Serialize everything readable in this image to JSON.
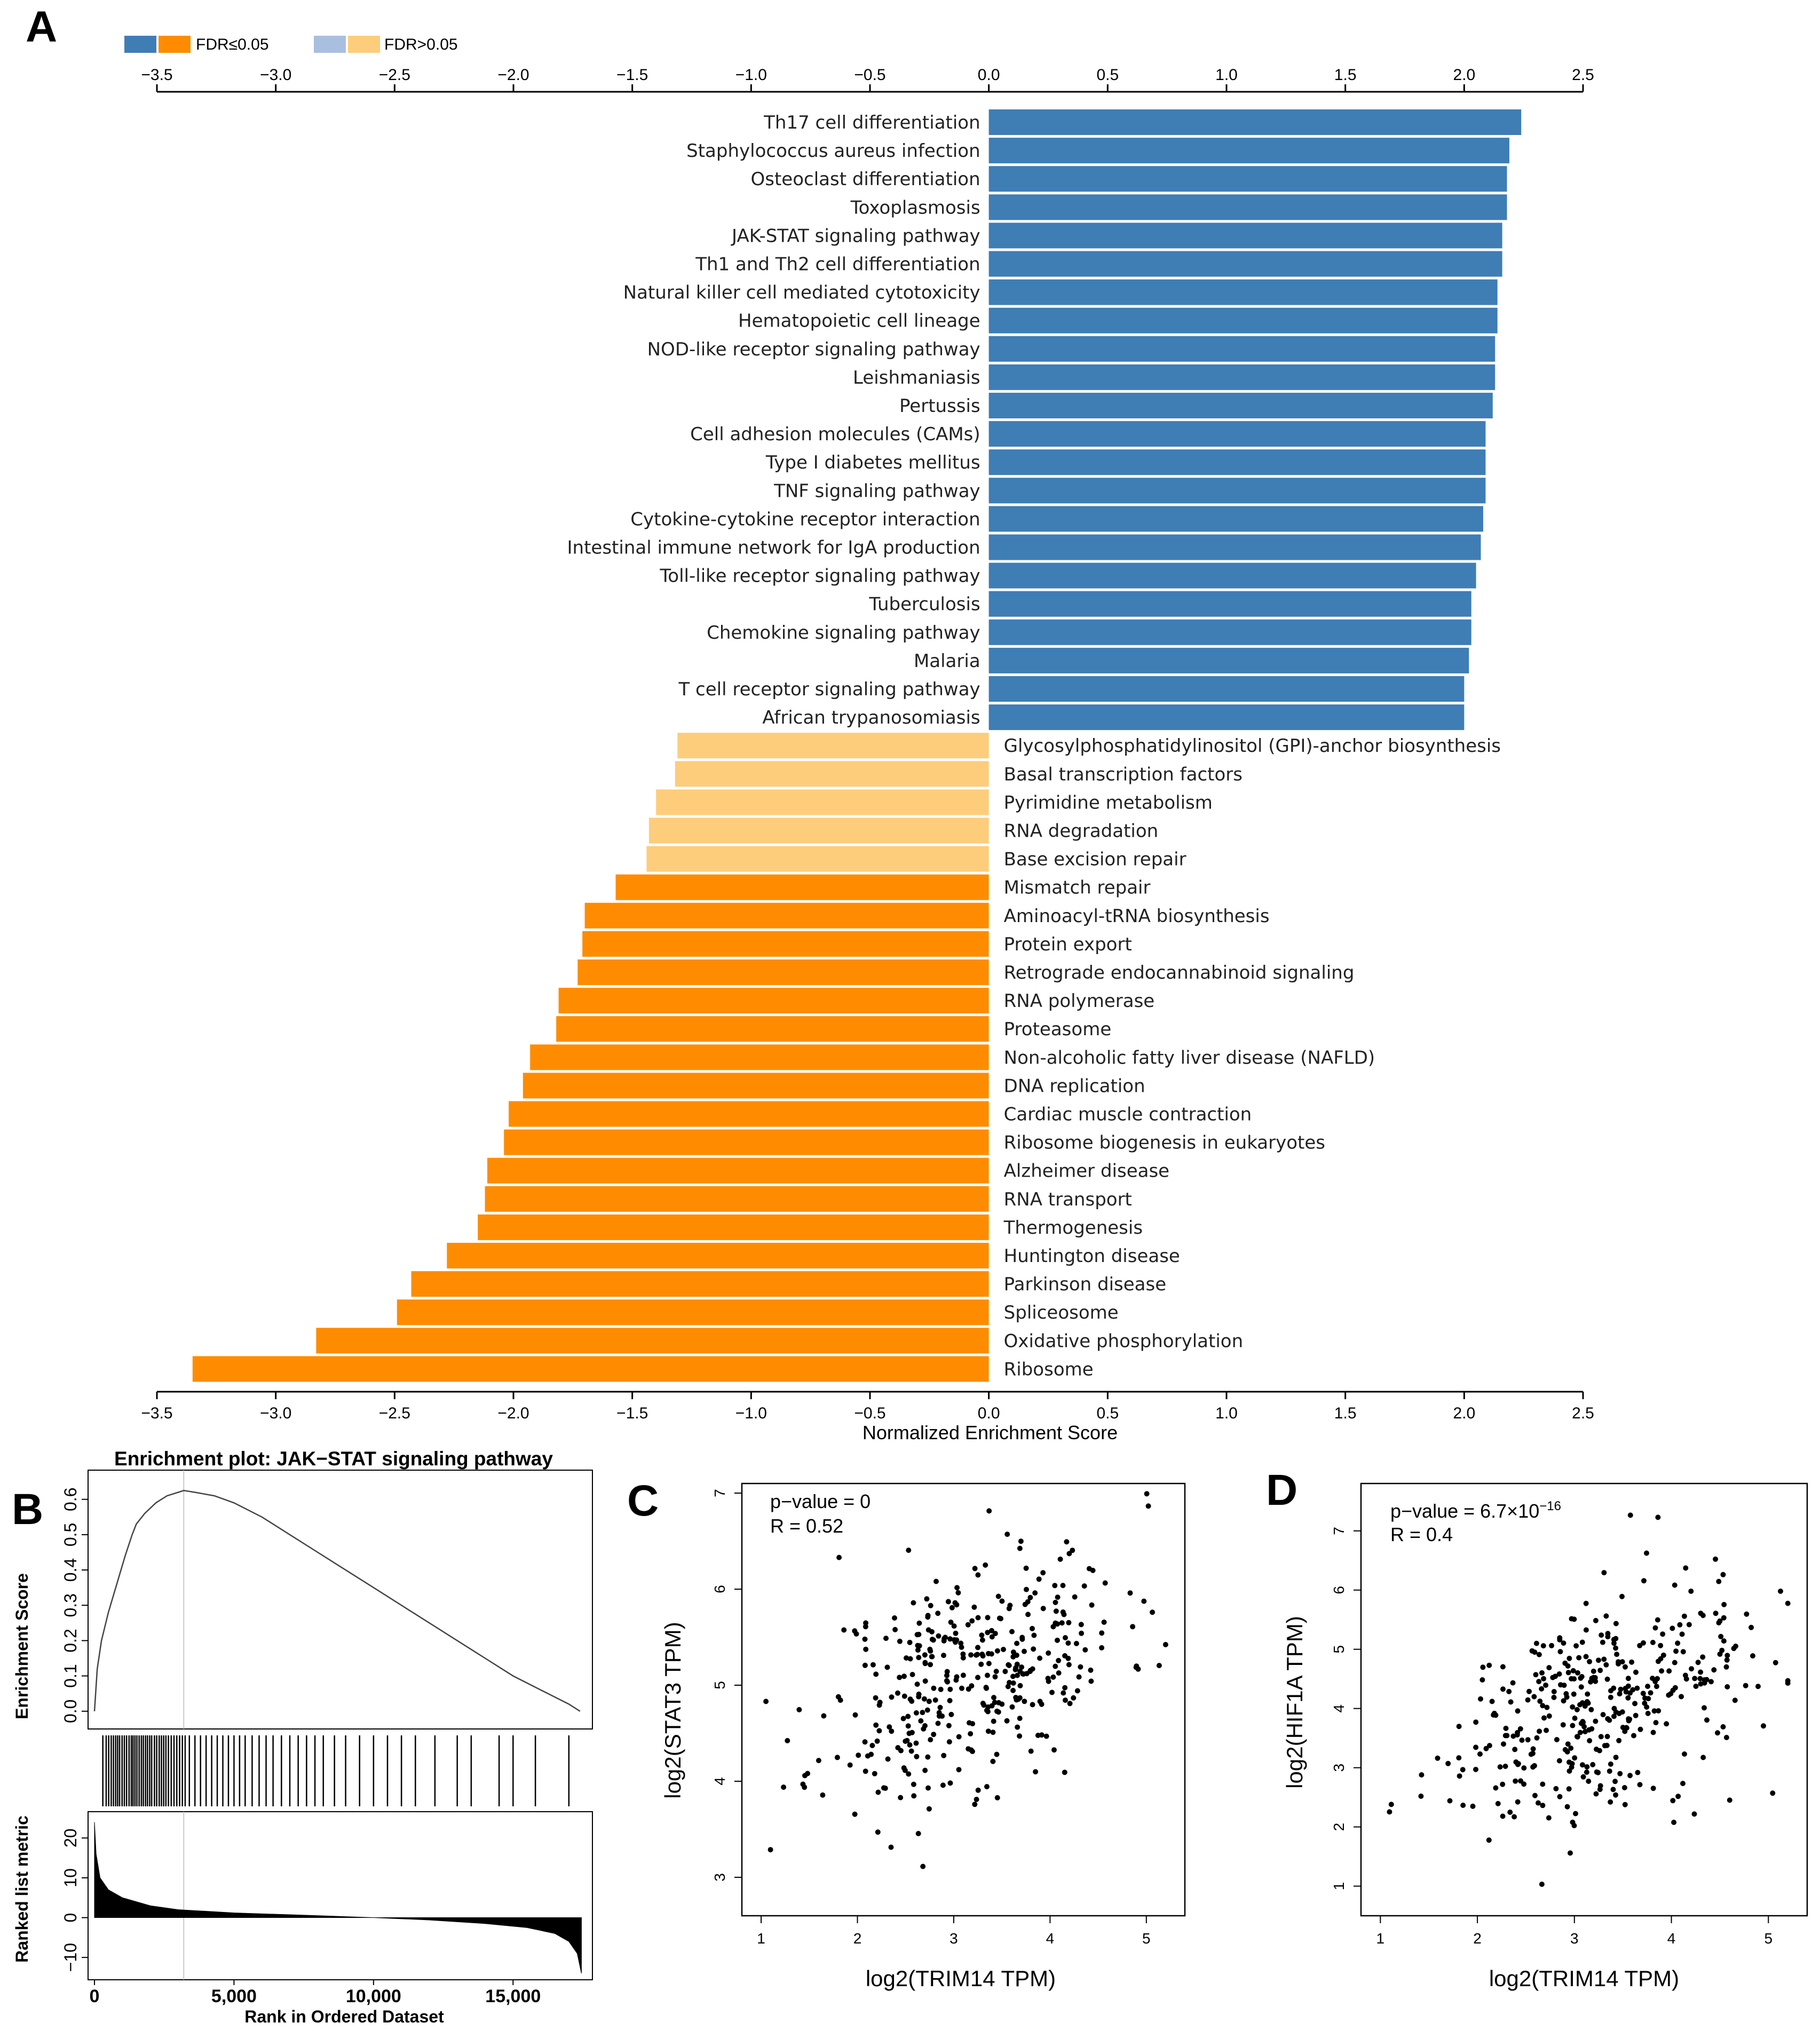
{
  "panel_labels": {
    "a": "A",
    "b": "B",
    "c": "C",
    "d": "D"
  },
  "chart_data": [
    {
      "type": "bar",
      "orientation": "horizontal",
      "panel": "A",
      "xlabel": "Normalized Enrichment Score",
      "xlim": [
        -3.5,
        2.5
      ],
      "x_ticks": [
        "-3.5",
        "-3.0",
        "-2.5",
        "-2.0",
        "-1.5",
        "-1.0",
        "-0.5",
        "0.0",
        "0.5",
        "1.0",
        "1.5",
        "2.0",
        "2.5"
      ],
      "legend": [
        {
          "label": "FDR≤0.05",
          "colors": [
            "#3f7db5",
            "#ff8c00"
          ]
        },
        {
          "label": "FDR>0.05",
          "colors": [
            "#a9bfe0",
            "#fdcd7b"
          ]
        }
      ],
      "colors": {
        "pos_sig": "#3f7db5",
        "pos_ns": "#a9bfe0",
        "neg_sig": "#ff8c00",
        "neg_ns": "#fdcd7b"
      },
      "bars": [
        {
          "label": "Th17 cell differentiation",
          "value": 2.24,
          "sig": true
        },
        {
          "label": "Staphylococcus aureus infection",
          "value": 2.19,
          "sig": true
        },
        {
          "label": "Osteoclast differentiation",
          "value": 2.18,
          "sig": true
        },
        {
          "label": "Toxoplasmosis",
          "value": 2.18,
          "sig": true
        },
        {
          "label": "JAK-STAT signaling pathway",
          "value": 2.16,
          "sig": true
        },
        {
          "label": "Th1 and Th2 cell differentiation",
          "value": 2.16,
          "sig": true
        },
        {
          "label": "Natural killer cell mediated cytotoxicity",
          "value": 2.14,
          "sig": true
        },
        {
          "label": "Hematopoietic cell lineage",
          "value": 2.14,
          "sig": true
        },
        {
          "label": "NOD-like receptor signaling pathway",
          "value": 2.13,
          "sig": true
        },
        {
          "label": "Leishmaniasis",
          "value": 2.13,
          "sig": true
        },
        {
          "label": "Pertussis",
          "value": 2.12,
          "sig": true
        },
        {
          "label": "Cell adhesion molecules (CAMs)",
          "value": 2.09,
          "sig": true
        },
        {
          "label": "Type I diabetes mellitus",
          "value": 2.09,
          "sig": true
        },
        {
          "label": "TNF signaling pathway",
          "value": 2.09,
          "sig": true
        },
        {
          "label": "Cytokine-cytokine receptor interaction",
          "value": 2.08,
          "sig": true
        },
        {
          "label": "Intestinal immune network for IgA production",
          "value": 2.07,
          "sig": true
        },
        {
          "label": "Toll-like receptor signaling pathway",
          "value": 2.05,
          "sig": true
        },
        {
          "label": "Tuberculosis",
          "value": 2.03,
          "sig": true
        },
        {
          "label": "Chemokine signaling pathway",
          "value": 2.03,
          "sig": true
        },
        {
          "label": "Malaria",
          "value": 2.02,
          "sig": true
        },
        {
          "label": "T cell receptor signaling pathway",
          "value": 2.0,
          "sig": true
        },
        {
          "label": "African trypanosomiasis",
          "value": 2.0,
          "sig": true
        },
        {
          "label": "Glycosylphosphatidylinositol (GPI)-anchor biosynthesis",
          "value": -1.31,
          "sig": false
        },
        {
          "label": "Basal transcription factors",
          "value": -1.32,
          "sig": false
        },
        {
          "label": "Pyrimidine metabolism",
          "value": -1.4,
          "sig": false
        },
        {
          "label": "RNA degradation",
          "value": -1.43,
          "sig": false
        },
        {
          "label": "Base excision repair",
          "value": -1.44,
          "sig": false
        },
        {
          "label": "Mismatch repair",
          "value": -1.57,
          "sig": true
        },
        {
          "label": "Aminoacyl-tRNA biosynthesis",
          "value": -1.7,
          "sig": true
        },
        {
          "label": "Protein export",
          "value": -1.71,
          "sig": true
        },
        {
          "label": "Retrograde endocannabinoid signaling",
          "value": -1.73,
          "sig": true
        },
        {
          "label": "RNA polymerase",
          "value": -1.81,
          "sig": true
        },
        {
          "label": "Proteasome",
          "value": -1.82,
          "sig": true
        },
        {
          "label": "Non-alcoholic fatty liver disease (NAFLD)",
          "value": -1.93,
          "sig": true
        },
        {
          "label": "DNA replication",
          "value": -1.96,
          "sig": true
        },
        {
          "label": "Cardiac muscle contraction",
          "value": -2.02,
          "sig": true
        },
        {
          "label": "Ribosome biogenesis in eukaryotes",
          "value": -2.04,
          "sig": true
        },
        {
          "label": "Alzheimer disease",
          "value": -2.11,
          "sig": true
        },
        {
          "label": "RNA transport",
          "value": -2.12,
          "sig": true
        },
        {
          "label": "Thermogenesis",
          "value": -2.15,
          "sig": true
        },
        {
          "label": "Huntington disease",
          "value": -2.28,
          "sig": true
        },
        {
          "label": "Parkinson disease",
          "value": -2.43,
          "sig": true
        },
        {
          "label": "Spliceosome",
          "value": -2.49,
          "sig": true
        },
        {
          "label": "Oxidative phosphorylation",
          "value": -2.83,
          "sig": true
        },
        {
          "label": "Ribosome",
          "value": -3.35,
          "sig": true
        }
      ]
    },
    {
      "type": "line",
      "panel": "B",
      "title": "Enrichment plot: JAK−STAT signaling pathway",
      "ylabel_top": "Enrichment Score",
      "ylabel_bottom": "Ranked list metric",
      "xlabel": "Rank in Ordered Dataset",
      "x_ticks": [
        "0",
        "5,000",
        "10,000",
        "15,000"
      ],
      "x_tick_values": [
        0,
        5000,
        10000,
        15000
      ],
      "xlim": [
        0,
        17500
      ],
      "es_ticks": [
        "0.0",
        "0.1",
        "0.2",
        "0.3",
        "0.4",
        "0.5",
        "0.6"
      ],
      "es_ylim": [
        -0.02,
        0.66
      ],
      "metric_ticks": [
        "20",
        "10",
        "0",
        "−10"
      ],
      "metric_tick_values": [
        20,
        10,
        0,
        -10
      ],
      "metric_ylim": [
        -14,
        25
      ],
      "peak_rank": 3200,
      "es_curve": [
        [
          0,
          0.0
        ],
        [
          100,
          0.12
        ],
        [
          250,
          0.2
        ],
        [
          500,
          0.28
        ],
        [
          800,
          0.36
        ],
        [
          1100,
          0.44
        ],
        [
          1350,
          0.5
        ],
        [
          1500,
          0.53
        ],
        [
          1800,
          0.56
        ],
        [
          2200,
          0.59
        ],
        [
          2600,
          0.61
        ],
        [
          3000,
          0.62
        ],
        [
          3200,
          0.625
        ],
        [
          3600,
          0.62
        ],
        [
          4300,
          0.61
        ],
        [
          5000,
          0.59
        ],
        [
          6000,
          0.55
        ],
        [
          7000,
          0.5
        ],
        [
          8000,
          0.45
        ],
        [
          9000,
          0.4
        ],
        [
          10000,
          0.35
        ],
        [
          11000,
          0.3
        ],
        [
          12000,
          0.25
        ],
        [
          13000,
          0.2
        ],
        [
          14000,
          0.15
        ],
        [
          15000,
          0.1
        ],
        [
          16000,
          0.06
        ],
        [
          17000,
          0.02
        ],
        [
          17400,
          0.0
        ]
      ],
      "metric_curve": [
        [
          0,
          24
        ],
        [
          60,
          16
        ],
        [
          200,
          10
        ],
        [
          500,
          7
        ],
        [
          1000,
          5
        ],
        [
          2000,
          3
        ],
        [
          3000,
          2
        ],
        [
          5000,
          1.2
        ],
        [
          8000,
          0.5
        ],
        [
          10000,
          0
        ],
        [
          12000,
          -0.6
        ],
        [
          14000,
          -1.5
        ],
        [
          15500,
          -2.5
        ],
        [
          16500,
          -4
        ],
        [
          17000,
          -6
        ],
        [
          17300,
          -9
        ],
        [
          17450,
          -14
        ]
      ],
      "hits": [
        300,
        420,
        510,
        600,
        680,
        760,
        830,
        900,
        990,
        1070,
        1150,
        1240,
        1320,
        1380,
        1450,
        1520,
        1600,
        1680,
        1750,
        1830,
        1900,
        1980,
        2050,
        2150,
        2230,
        2320,
        2400,
        2480,
        2560,
        2650,
        2750,
        2850,
        2950,
        3050,
        3150,
        3250,
        3400,
        3600,
        3800,
        4000,
        4200,
        4400,
        4600,
        4800,
        5000,
        5200,
        5400,
        5650,
        5900,
        6150,
        6400,
        6700,
        7000,
        7300,
        7600,
        7900,
        8200,
        8600,
        9000,
        9500,
        10000,
        10500,
        11000,
        11500,
        12200,
        13000,
        13500,
        14500,
        15000,
        15800,
        17000
      ]
    },
    {
      "type": "scatter",
      "panel": "C",
      "xlabel": "log2(TRIM14 TPM)",
      "ylabel": "log2(STAT3 TPM)",
      "xlim": [
        0.8,
        5.4
      ],
      "ylim": [
        2.6,
        7.1
      ],
      "x_ticks": [
        "1",
        "2",
        "3",
        "4",
        "5"
      ],
      "x_tick_values": [
        1,
        2,
        3,
        4,
        5
      ],
      "y_ticks": [
        "3",
        "4",
        "5",
        "6",
        "7"
      ],
      "y_tick_values": [
        3,
        4,
        5,
        6,
        7
      ],
      "annotation": [
        "p−value = 0",
        "R = 0.52"
      ],
      "regression": {
        "intercept": 3.9,
        "slope": 0.38,
        "sd": 0.6,
        "center": 3.2
      },
      "n_points": 380,
      "seed": 11
    },
    {
      "type": "scatter",
      "panel": "D",
      "xlabel": "log2(TRIM14 TPM)",
      "ylabel": "log2(HIF1A TPM)",
      "xlim": [
        0.8,
        5.4
      ],
      "ylim": [
        0.5,
        7.8
      ],
      "x_ticks": [
        "1",
        "2",
        "3",
        "4",
        "5"
      ],
      "x_tick_values": [
        1,
        2,
        3,
        4,
        5
      ],
      "y_ticks": [
        "1",
        "2",
        "3",
        "4",
        "5",
        "6",
        "7"
      ],
      "y_tick_values": [
        1,
        2,
        3,
        4,
        5,
        6,
        7
      ],
      "annotation_pvalue": "p−value = 6.7×10",
      "annotation_pvalue_exp": "−16",
      "annotation_r": "R = 0.4",
      "regression": {
        "intercept": 2.4,
        "slope": 0.5,
        "sd": 0.9,
        "center": 3.2
      },
      "n_points": 380,
      "seed": 29
    }
  ]
}
